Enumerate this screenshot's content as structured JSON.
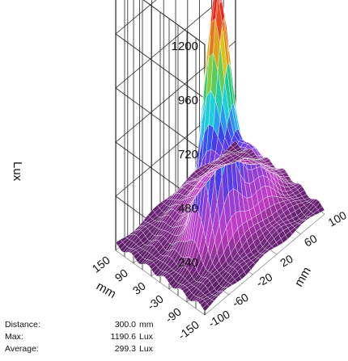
{
  "chart_data": {
    "type": "surface",
    "zlabel": "Lux",
    "xlabel": "mm",
    "ylabel": "mm",
    "z_ticks": [
      240,
      480,
      720,
      960,
      1200
    ],
    "z_ticks_text": [
      "240",
      "480",
      "720",
      "960",
      "1200"
    ],
    "z_range": [
      0,
      1200
    ],
    "x_ticks": [
      -150,
      -90,
      -30,
      30,
      90,
      150
    ],
    "x_ticks_text": [
      "-150",
      "-90",
      "-30",
      "30",
      "90",
      "150"
    ],
    "x_range": [
      -150,
      150
    ],
    "y_ticks": [
      -100,
      -60,
      -20,
      20,
      60,
      100
    ],
    "y_ticks_text": [
      "-100",
      "-60",
      "-20",
      "20",
      "60",
      "100"
    ],
    "y_range": [
      -100,
      100
    ],
    "peak": {
      "x": -30,
      "y": -20,
      "z": 1190.6
    },
    "colormap": [
      "#5a1e66",
      "#c43fc7",
      "#8a3fd6",
      "#3c3cf0",
      "#1fd0f0",
      "#22c878",
      "#d7d21c",
      "#e86a1a",
      "#e82020",
      "#f2f2f2"
    ],
    "grid": true
  },
  "info": {
    "distance_label": "Distance:",
    "distance_value": "300.0",
    "distance_unit": "mm",
    "max_label": "Max:",
    "max_value": "1190.6",
    "max_unit": "Lux",
    "avg_label": "Average:",
    "avg_value": "299.3",
    "avg_unit": "Lux"
  }
}
